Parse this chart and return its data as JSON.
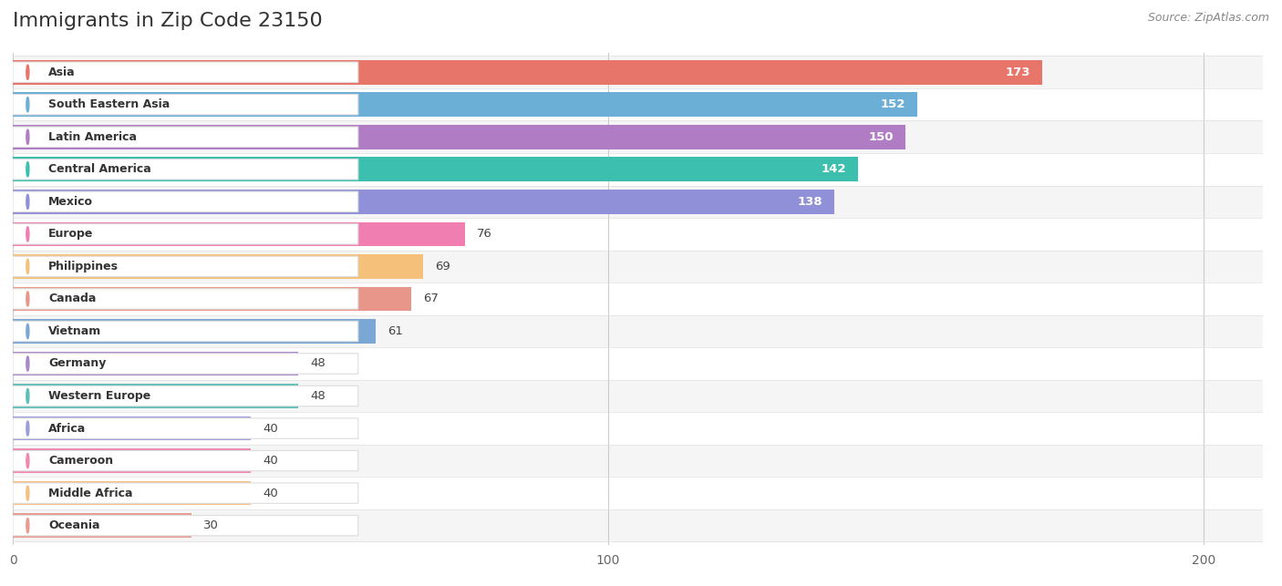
{
  "title": "Immigrants in Zip Code 23150",
  "source": "Source: ZipAtlas.com",
  "categories": [
    "Asia",
    "South Eastern Asia",
    "Latin America",
    "Central America",
    "Mexico",
    "Europe",
    "Philippines",
    "Canada",
    "Vietnam",
    "Germany",
    "Western Europe",
    "Africa",
    "Cameroon",
    "Middle Africa",
    "Oceania"
  ],
  "values": [
    173,
    152,
    150,
    142,
    138,
    76,
    69,
    67,
    61,
    48,
    48,
    40,
    40,
    40,
    30
  ],
  "bar_colors": [
    "#E8756A",
    "#6BAED6",
    "#B07DC4",
    "#3DBFB0",
    "#9090D8",
    "#F07EB0",
    "#F5C07A",
    "#E8958A",
    "#7BA7D4",
    "#A888C8",
    "#5BBFB8",
    "#9B9FD8",
    "#F088B0",
    "#F5C080",
    "#E89A90"
  ],
  "xlim": [
    0,
    210
  ],
  "xticks": [
    0,
    100,
    200
  ],
  "background_color": "#ffffff",
  "row_bg_even": "#f5f5f5",
  "row_bg_odd": "#ffffff",
  "title_fontsize": 16,
  "source_fontsize": 9,
  "bar_height": 0.75
}
